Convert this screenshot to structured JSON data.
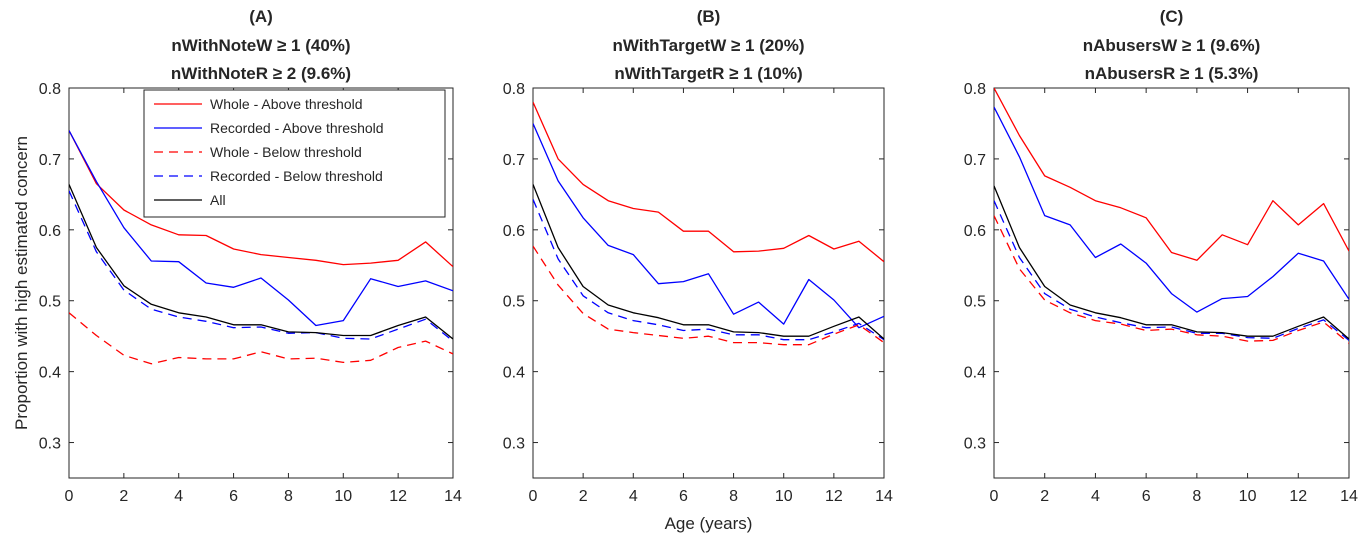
{
  "chart_data": [
    {
      "type": "line",
      "title": "(A)",
      "subtitle_lines": [
        "nWithNoteW ≥ 1 (40%)",
        "nWithNoteR ≥ 2 (9.6%)"
      ],
      "xlabel": "",
      "ylabel": "Proportion with high estimated concern",
      "xlim": [
        0,
        14
      ],
      "ylim": [
        0.25,
        0.8
      ],
      "x": [
        0,
        1,
        2,
        3,
        4,
        5,
        6,
        7,
        8,
        9,
        10,
        11,
        12,
        13,
        14
      ],
      "xticks": [
        "0",
        "2",
        "4",
        "6",
        "8",
        "10",
        "12",
        "14"
      ],
      "xtick_values": [
        0,
        2,
        4,
        6,
        8,
        10,
        12,
        14
      ],
      "yticks": [
        "0.3",
        "0.4",
        "0.5",
        "0.6",
        "0.7",
        "0.8"
      ],
      "ytick_values": [
        0.3,
        0.4,
        0.5,
        0.6,
        0.7,
        0.8
      ],
      "grid": false,
      "legend_position": "top-right",
      "series": [
        {
          "name": "Whole - Above threshold",
          "color": "#ff0000",
          "dash": "solid",
          "values": [
            0.74,
            0.665,
            0.628,
            0.607,
            0.593,
            0.592,
            0.573,
            0.565,
            0.561,
            0.557,
            0.551,
            0.553,
            0.557,
            0.583,
            0.548
          ]
        },
        {
          "name": "Recorded - Above threshold",
          "color": "#0000ff",
          "dash": "solid",
          "values": [
            0.74,
            0.668,
            0.603,
            0.556,
            0.555,
            0.525,
            0.519,
            0.532,
            0.501,
            0.465,
            0.472,
            0.531,
            0.52,
            0.528,
            0.514
          ]
        },
        {
          "name": "Whole - Below threshold",
          "color": "#ff0000",
          "dash": "dashed",
          "values": [
            0.483,
            0.451,
            0.423,
            0.411,
            0.42,
            0.418,
            0.418,
            0.428,
            0.418,
            0.419,
            0.413,
            0.416,
            0.434,
            0.443,
            0.425
          ]
        },
        {
          "name": "Recorded - Below threshold",
          "color": "#0000ff",
          "dash": "dashed",
          "values": [
            0.655,
            0.569,
            0.515,
            0.488,
            0.477,
            0.471,
            0.462,
            0.463,
            0.454,
            0.455,
            0.447,
            0.446,
            0.46,
            0.474,
            0.443
          ]
        },
        {
          "name": "All",
          "color": "#000000",
          "dash": "solid",
          "values": [
            0.664,
            0.575,
            0.521,
            0.495,
            0.483,
            0.477,
            0.466,
            0.466,
            0.456,
            0.455,
            0.451,
            0.451,
            0.465,
            0.477,
            0.446
          ]
        }
      ]
    },
    {
      "type": "line",
      "title": "(B)",
      "subtitle_lines": [
        "nWithTargetW ≥ 1 (20%)",
        "nWithTargetR ≥ 1 (10%)"
      ],
      "xlabel": "Age (years)",
      "ylabel": "",
      "xlim": [
        0,
        14
      ],
      "ylim": [
        0.25,
        0.8
      ],
      "x": [
        0,
        1,
        2,
        3,
        4,
        5,
        6,
        7,
        8,
        9,
        10,
        11,
        12,
        13,
        14
      ],
      "xticks": [
        "0",
        "2",
        "4",
        "6",
        "8",
        "10",
        "12",
        "14"
      ],
      "xtick_values": [
        0,
        2,
        4,
        6,
        8,
        10,
        12,
        14
      ],
      "yticks": [
        "0.3",
        "0.4",
        "0.5",
        "0.6",
        "0.7",
        "0.8"
      ],
      "ytick_values": [
        0.3,
        0.4,
        0.5,
        0.6,
        0.7,
        0.8
      ],
      "grid": false,
      "series": [
        {
          "name": "Whole - Above threshold",
          "color": "#ff0000",
          "dash": "solid",
          "values": [
            0.78,
            0.7,
            0.664,
            0.641,
            0.63,
            0.625,
            0.598,
            0.598,
            0.569,
            0.57,
            0.574,
            0.592,
            0.573,
            0.584,
            0.555
          ]
        },
        {
          "name": "Recorded - Above threshold",
          "color": "#0000ff",
          "dash": "solid",
          "values": [
            0.75,
            0.669,
            0.617,
            0.578,
            0.565,
            0.524,
            0.527,
            0.538,
            0.481,
            0.498,
            0.467,
            0.53,
            0.501,
            0.462,
            0.478
          ]
        },
        {
          "name": "Whole - Below threshold",
          "color": "#ff0000",
          "dash": "dashed",
          "values": [
            0.577,
            0.522,
            0.482,
            0.46,
            0.455,
            0.451,
            0.447,
            0.45,
            0.441,
            0.441,
            0.438,
            0.438,
            0.453,
            0.466,
            0.441
          ]
        },
        {
          "name": "Recorded - Below threshold",
          "color": "#0000ff",
          "dash": "dashed",
          "values": [
            0.643,
            0.559,
            0.507,
            0.483,
            0.472,
            0.466,
            0.458,
            0.46,
            0.452,
            0.452,
            0.445,
            0.445,
            0.456,
            0.468,
            0.445
          ]
        },
        {
          "name": "All",
          "color": "#000000",
          "dash": "solid",
          "values": [
            0.664,
            0.575,
            0.52,
            0.494,
            0.483,
            0.476,
            0.466,
            0.466,
            0.456,
            0.455,
            0.45,
            0.45,
            0.464,
            0.477,
            0.446
          ]
        }
      ]
    },
    {
      "type": "line",
      "title": "(C)",
      "subtitle_lines": [
        "nAbusersW ≥ 1 (9.6%)",
        "nAbusersR ≥ 1 (5.3%)"
      ],
      "xlabel": "",
      "ylabel": "",
      "xlim": [
        0,
        14
      ],
      "ylim": [
        0.25,
        0.8
      ],
      "x": [
        0,
        1,
        2,
        3,
        4,
        5,
        6,
        7,
        8,
        9,
        10,
        11,
        12,
        13,
        14
      ],
      "xticks": [
        "0",
        "2",
        "4",
        "6",
        "8",
        "10",
        "12",
        "14"
      ],
      "xtick_values": [
        0,
        2,
        4,
        6,
        8,
        10,
        12,
        14
      ],
      "yticks": [
        "0.3",
        "0.4",
        "0.5",
        "0.6",
        "0.7",
        "0.8"
      ],
      "ytick_values": [
        0.3,
        0.4,
        0.5,
        0.6,
        0.7,
        0.8
      ],
      "grid": false,
      "series": [
        {
          "name": "Whole - Above threshold",
          "color": "#ff0000",
          "dash": "solid",
          "values": [
            0.8,
            0.733,
            0.676,
            0.66,
            0.641,
            0.631,
            0.617,
            0.568,
            0.557,
            0.593,
            0.579,
            0.641,
            0.607,
            0.637,
            0.57
          ]
        },
        {
          "name": "Recorded - Above threshold",
          "color": "#0000ff",
          "dash": "solid",
          "values": [
            0.773,
            0.703,
            0.62,
            0.607,
            0.561,
            0.58,
            0.553,
            0.51,
            0.484,
            0.503,
            0.506,
            0.534,
            0.567,
            0.556,
            0.502
          ]
        },
        {
          "name": "Whole - Below threshold",
          "color": "#ff0000",
          "dash": "dashed",
          "values": [
            0.62,
            0.545,
            0.501,
            0.483,
            0.472,
            0.467,
            0.458,
            0.46,
            0.452,
            0.45,
            0.443,
            0.444,
            0.458,
            0.47,
            0.44
          ]
        },
        {
          "name": "Recorded - Below threshold",
          "color": "#0000ff",
          "dash": "dashed",
          "values": [
            0.641,
            0.561,
            0.51,
            0.488,
            0.477,
            0.469,
            0.462,
            0.463,
            0.454,
            0.454,
            0.448,
            0.447,
            0.461,
            0.473,
            0.444
          ]
        },
        {
          "name": "All",
          "color": "#000000",
          "dash": "solid",
          "values": [
            0.662,
            0.575,
            0.52,
            0.494,
            0.483,
            0.476,
            0.466,
            0.466,
            0.456,
            0.455,
            0.45,
            0.45,
            0.464,
            0.477,
            0.446
          ]
        }
      ]
    }
  ]
}
